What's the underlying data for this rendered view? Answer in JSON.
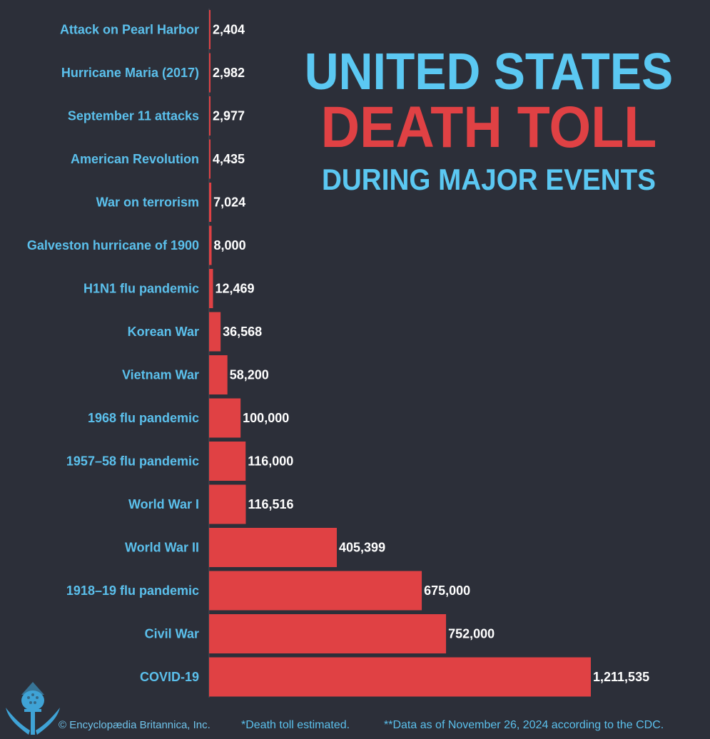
{
  "title": {
    "line1": "UNITED STATES",
    "line2": "DEATH TOLL",
    "line3": "DURING MAJOR EVENTS"
  },
  "colors": {
    "background": "#2c2f39",
    "bar": "#e04144",
    "label": "#5bc0ec",
    "value": "#ffffff",
    "title_blue": "#5bc8f2",
    "title_red": "#e04144"
  },
  "footer": {
    "copyright": "© Encyclopædia Britannica, Inc.",
    "note1": "*Death toll estimated.",
    "note2": "**Data as of November 26, 2024 according to the CDC."
  },
  "logo": {
    "icon": "britannica-thistle-icon"
  },
  "chart_data": {
    "type": "bar",
    "orientation": "horizontal",
    "title": "UNITED STATES DEATH TOLL DURING MAJOR EVENTS",
    "xlabel": "",
    "ylabel": "",
    "grid": false,
    "xlim": [
      0,
      1211535
    ],
    "categories": [
      "Attack on Pearl Harbor",
      "Hurricane Maria (2017)",
      "September 11 attacks",
      "American Revolution",
      "War on terrorism",
      "Galveston hurricane of 1900",
      "H1N1 flu pandemic",
      "Korean War",
      "Vietnam War",
      "1968 flu pandemic",
      "1957–58 flu pandemic",
      "World War I",
      "World War II",
      "1918–19 flu pandemic",
      "Civil War",
      "COVID-19"
    ],
    "values": [
      2404,
      2982,
      2977,
      4435,
      7024,
      8000,
      12469,
      36568,
      58200,
      100000,
      116000,
      116516,
      405399,
      675000,
      752000,
      1211535
    ],
    "value_labels": [
      "2,404",
      "2,982",
      "2,977",
      "4,435",
      "7,024",
      "8,000",
      "12,469",
      "36,568",
      "58,200",
      "100,000",
      "116,000",
      "116,516",
      "405,399",
      "675,000",
      "752,000",
      "1,211,535"
    ]
  }
}
